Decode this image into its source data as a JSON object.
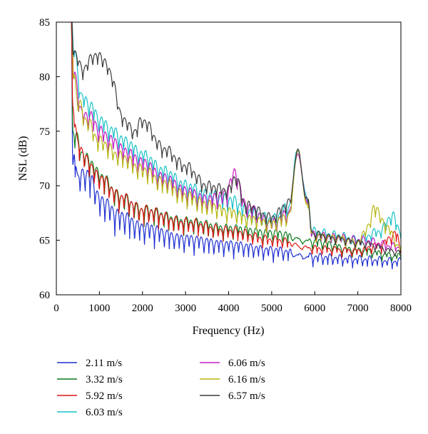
{
  "chart_data": {
    "type": "line",
    "title": "",
    "xlabel": "Frequency (Hz)",
    "ylabel": "NSL (dB)",
    "xlim": [
      0,
      8000
    ],
    "ylim": [
      60,
      85
    ],
    "x_ticks": [
      "0",
      "1000",
      "2000",
      "3000",
      "4000",
      "5000",
      "6000",
      "7000",
      "8000"
    ],
    "y_ticks": [
      "60",
      "65",
      "70",
      "75",
      "80",
      "85"
    ],
    "grid": false,
    "legend_position": "bottom",
    "series": [
      {
        "name": "2.11 m/s",
        "color": "#1f2fd0",
        "base": 63.0,
        "osc": 2.6,
        "period": 230,
        "shape": "low",
        "points": [
          [
            350,
            85
          ],
          [
            380,
            71.4
          ],
          [
            420,
            73.0
          ],
          [
            500,
            70.2
          ],
          [
            600,
            71.0
          ],
          [
            800,
            70.5
          ],
          [
            1000,
            68.5
          ],
          [
            1500,
            67.0
          ],
          [
            2000,
            66.0
          ],
          [
            3000,
            65.0
          ],
          [
            4000,
            64.5
          ],
          [
            5000,
            64.0
          ],
          [
            6000,
            63.4
          ],
          [
            7000,
            63.2
          ],
          [
            8000,
            63.0
          ]
        ]
      },
      {
        "name": "3.32 m/s",
        "color": "#0a7a1a",
        "base": 63.6,
        "osc": 1.9,
        "period": 230,
        "shape": "low",
        "points": [
          [
            350,
            85
          ],
          [
            380,
            74.8
          ],
          [
            450,
            74.4
          ],
          [
            600,
            72.8
          ],
          [
            800,
            72.0
          ],
          [
            1000,
            70.8
          ],
          [
            1500,
            68.8
          ],
          [
            2000,
            67.6
          ],
          [
            3000,
            66.6
          ],
          [
            4000,
            66.0
          ],
          [
            5000,
            65.6
          ],
          [
            6000,
            64.8
          ],
          [
            7000,
            64.0
          ],
          [
            8000,
            63.5
          ]
        ]
      },
      {
        "name": "5.92 m/s",
        "color": "#e01515",
        "base": 63.8,
        "osc": 1.9,
        "period": 230,
        "shape": "low",
        "points": [
          [
            350,
            85
          ],
          [
            380,
            77.0
          ],
          [
            500,
            73.8
          ],
          [
            700,
            72.2
          ],
          [
            1000,
            70.6
          ],
          [
            1500,
            68.8
          ],
          [
            2000,
            67.6
          ],
          [
            3000,
            66.5
          ],
          [
            4000,
            65.8
          ],
          [
            5000,
            65.0
          ],
          [
            6000,
            64.2
          ],
          [
            7000,
            64.0
          ],
          [
            7500,
            64.5
          ],
          [
            7900,
            65.5
          ],
          [
            8000,
            64.0
          ]
        ]
      },
      {
        "name": "6.03 m/s",
        "color": "#18c0c8",
        "base": 64.0,
        "osc": 2.0,
        "period": 230,
        "shape": "high",
        "points": [
          [
            350,
            85
          ],
          [
            400,
            82.0
          ],
          [
            600,
            77.5
          ],
          [
            800,
            76.8
          ],
          [
            1000,
            75.5
          ],
          [
            1300,
            74.5
          ],
          [
            1600,
            73.5
          ],
          [
            2000,
            72.3
          ],
          [
            2500,
            70.8
          ],
          [
            3000,
            69.5
          ],
          [
            3500,
            68.6
          ],
          [
            4000,
            68.2
          ],
          [
            4500,
            67.2
          ],
          [
            5000,
            66.5
          ],
          [
            5400,
            67.5
          ],
          [
            5600,
            73.3
          ],
          [
            5800,
            69.0
          ],
          [
            5950,
            65.5
          ],
          [
            6500,
            65.2
          ],
          [
            7000,
            64.8
          ],
          [
            7500,
            65.5
          ],
          [
            7800,
            66.8
          ],
          [
            8000,
            65.5
          ]
        ]
      },
      {
        "name": "6.06 m/s",
        "color": "#c21bc2",
        "base": 64.0,
        "osc": 2.0,
        "period": 230,
        "shape": "high",
        "points": [
          [
            350,
            85
          ],
          [
            400,
            80.0
          ],
          [
            600,
            76.0
          ],
          [
            800,
            75.8
          ],
          [
            1000,
            74.5
          ],
          [
            1300,
            73.6
          ],
          [
            1600,
            72.6
          ],
          [
            2000,
            71.6
          ],
          [
            2500,
            70.2
          ],
          [
            3000,
            69.0
          ],
          [
            3500,
            68.2
          ],
          [
            3900,
            68.6
          ],
          [
            4150,
            70.6
          ],
          [
            4400,
            67.6
          ],
          [
            5000,
            66.2
          ],
          [
            5400,
            67.0
          ],
          [
            5600,
            73.0
          ],
          [
            5800,
            68.8
          ],
          [
            5950,
            65.2
          ],
          [
            6500,
            65.0
          ],
          [
            7000,
            64.8
          ],
          [
            8000,
            64.2
          ]
        ]
      },
      {
        "name": "6.16 m/s",
        "color": "#b5b510",
        "base": 64.0,
        "osc": 1.8,
        "period": 230,
        "shape": "high",
        "points": [
          [
            350,
            85
          ],
          [
            400,
            80.0
          ],
          [
            500,
            77.2
          ],
          [
            700,
            75.5
          ],
          [
            1000,
            73.6
          ],
          [
            1500,
            72.2
          ],
          [
            2000,
            71.0
          ],
          [
            2500,
            69.8
          ],
          [
            3000,
            68.6
          ],
          [
            3500,
            67.8
          ],
          [
            4000,
            67.2
          ],
          [
            4500,
            66.6
          ],
          [
            5000,
            66.2
          ],
          [
            5400,
            66.8
          ],
          [
            5600,
            73.2
          ],
          [
            5800,
            68.6
          ],
          [
            5950,
            65.2
          ],
          [
            6500,
            65.0
          ],
          [
            7000,
            64.6
          ],
          [
            7250,
            66.0
          ],
          [
            7400,
            67.7
          ],
          [
            7600,
            66.2
          ],
          [
            8000,
            64.2
          ]
        ]
      },
      {
        "name": "6.57 m/s",
        "color": "#3a3a3a",
        "base": 64.0,
        "osc": 1.5,
        "period": 230,
        "shape": "high",
        "points": [
          [
            350,
            85
          ],
          [
            400,
            82.0
          ],
          [
            600,
            80.3
          ],
          [
            900,
            81.6
          ],
          [
            1100,
            81.2
          ],
          [
            1300,
            79.5
          ],
          [
            1500,
            76.0
          ],
          [
            1800,
            74.6
          ],
          [
            2000,
            75.6
          ],
          [
            2500,
            73.0
          ],
          [
            3000,
            71.4
          ],
          [
            3500,
            69.6
          ],
          [
            4000,
            69.2
          ],
          [
            4150,
            70.4
          ],
          [
            4400,
            67.8
          ],
          [
            5000,
            66.8
          ],
          [
            5400,
            68.0
          ],
          [
            5600,
            73.2
          ],
          [
            5800,
            69.0
          ],
          [
            5950,
            65.4
          ],
          [
            6500,
            65.0
          ],
          [
            7000,
            64.6
          ],
          [
            8000,
            63.8
          ]
        ]
      }
    ]
  }
}
